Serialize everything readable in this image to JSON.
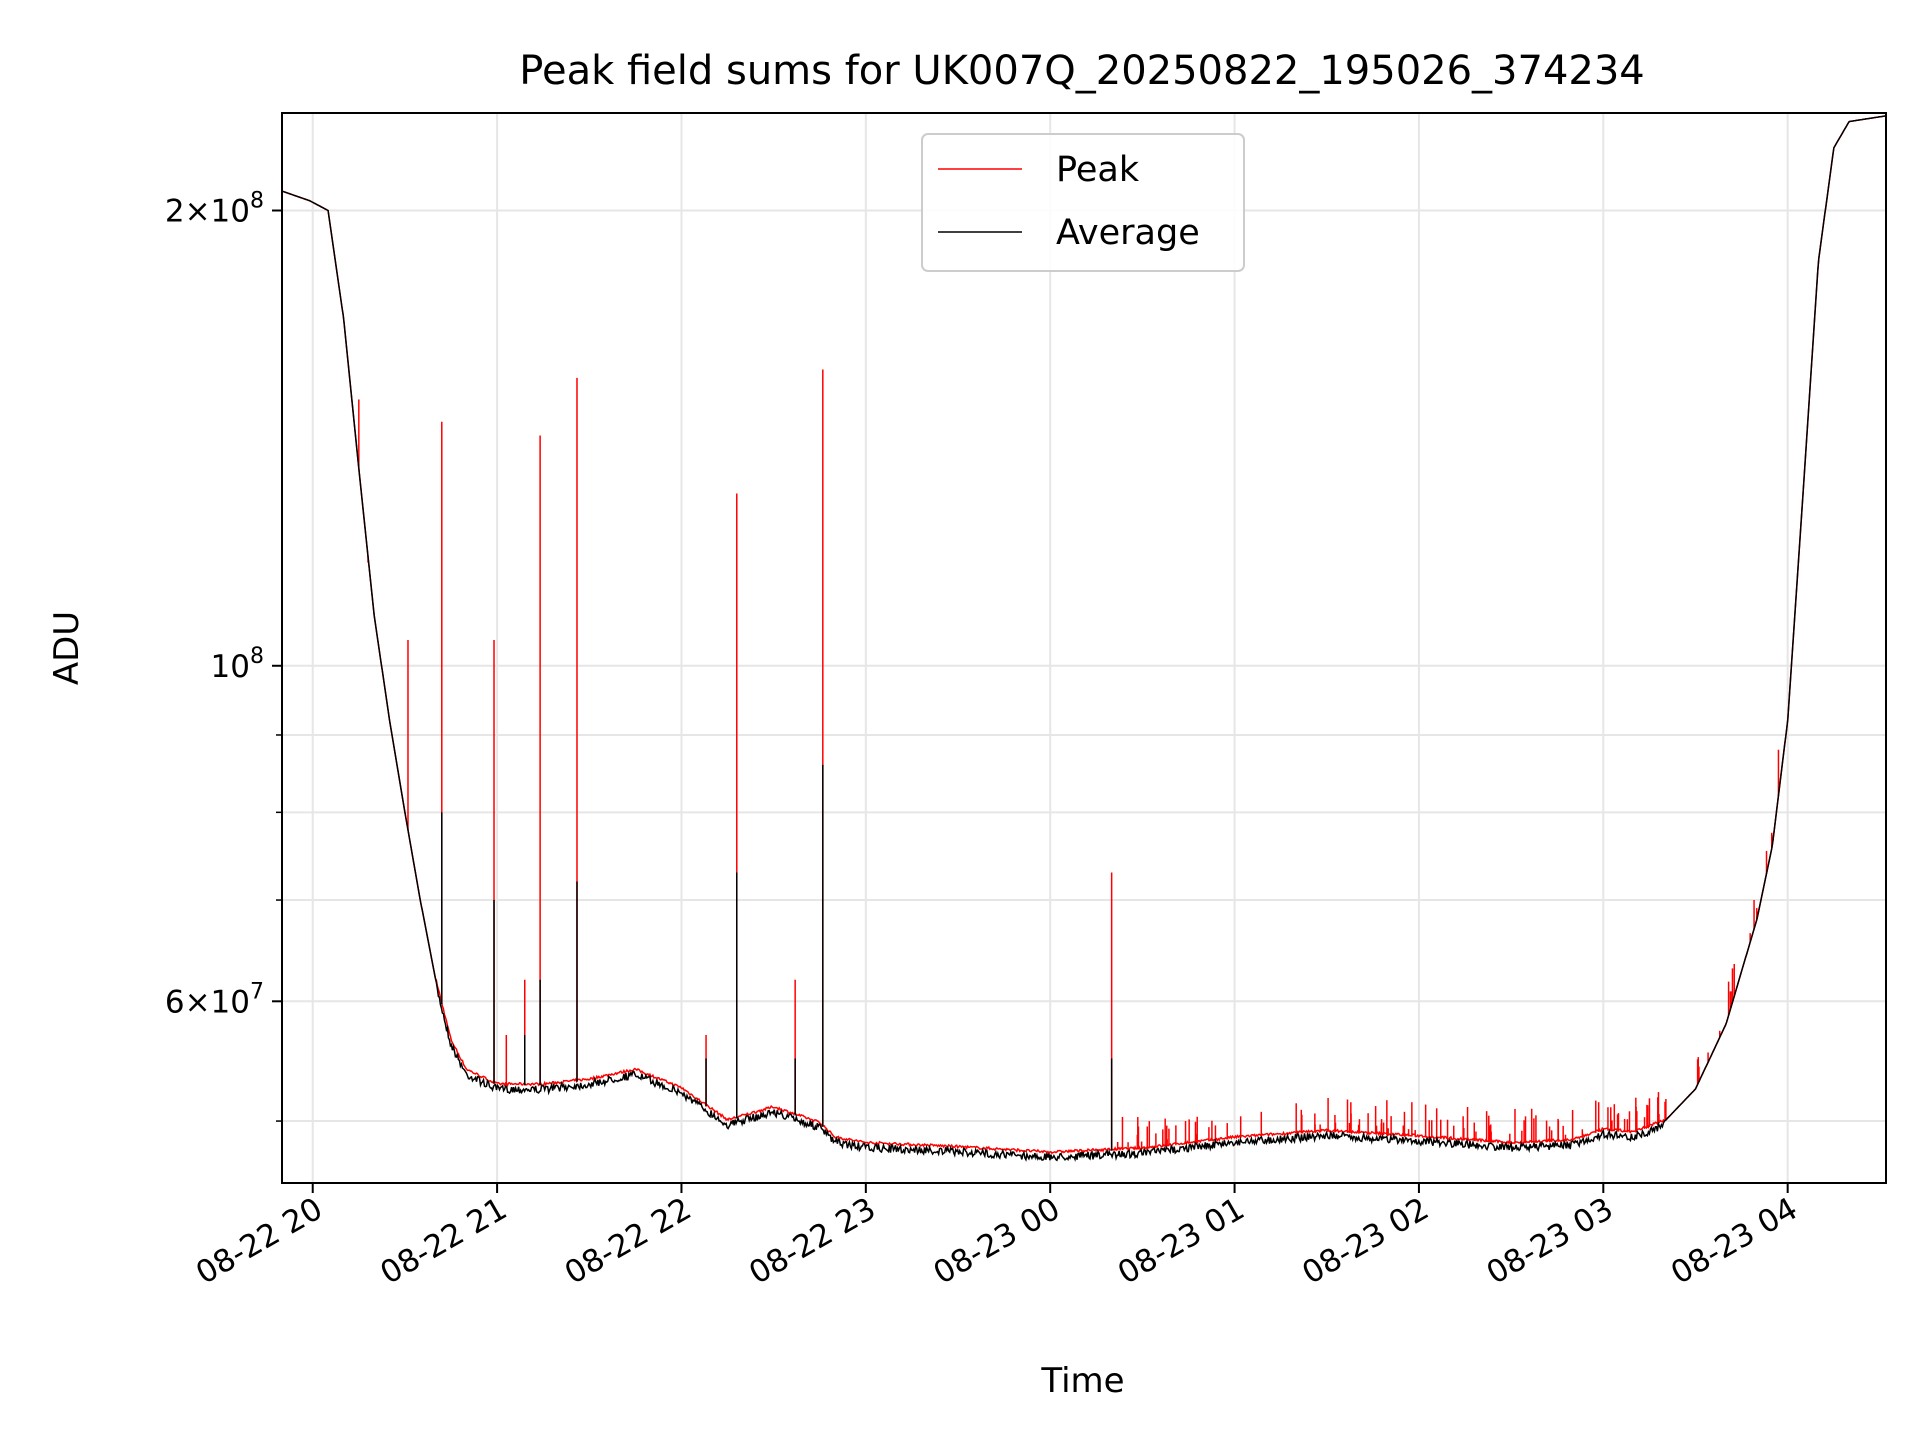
{
  "chart_data": {
    "type": "line",
    "title": "Peak field sums for UK007Q_20250822_195026_374234",
    "xlabel": "Time",
    "ylabel": "ADU",
    "y_scale": "log",
    "ylim": [
      45500000,
      232000000
    ],
    "xlim": [
      "2025-08-22 19:50",
      "2025-08-23 04:32"
    ],
    "grid": true,
    "legend_position": "top-center",
    "x_tick_labels": [
      "08-22 20",
      "08-22 21",
      "08-22 22",
      "08-22 23",
      "08-23 00",
      "08-23 01",
      "08-23 02",
      "08-23 03",
      "08-23 04"
    ],
    "x_tick_times": [
      "2025-08-22 20:00",
      "2025-08-22 21:00",
      "2025-08-22 22:00",
      "2025-08-22 23:00",
      "2025-08-23 00:00",
      "2025-08-23 01:00",
      "2025-08-23 02:00",
      "2025-08-23 03:00",
      "2025-08-23 04:00"
    ],
    "y_major_ticks": [
      {
        "value": 200000000,
        "mant": "2",
        "exp": "8"
      },
      {
        "value": 100000000,
        "mant": "",
        "exp": "8"
      },
      {
        "value": 60000000,
        "mant": "6",
        "exp": "7"
      }
    ],
    "y_minor_ticks": [
      50000000,
      70000000,
      80000000,
      90000000
    ],
    "series": [
      {
        "name": "Average",
        "color": "#000000",
        "points": [
          [
            "2025-08-22 19:50",
            206000000
          ],
          [
            "2025-08-22 19:59",
            203000000
          ],
          [
            "2025-08-22 20:05",
            200000000
          ],
          [
            "2025-08-22 20:10",
            170000000
          ],
          [
            "2025-08-22 20:15",
            135000000
          ],
          [
            "2025-08-22 20:20",
            108000000
          ],
          [
            "2025-08-22 20:25",
            92000000
          ],
          [
            "2025-08-22 20:30",
            80000000
          ],
          [
            "2025-08-22 20:35",
            70000000
          ],
          [
            "2025-08-22 20:40",
            62000000
          ],
          [
            "2025-08-22 20:45",
            56500000
          ],
          [
            "2025-08-22 20:50",
            54000000
          ],
          [
            "2025-08-22 21:00",
            52800000
          ],
          [
            "2025-08-22 21:15",
            52800000
          ],
          [
            "2025-08-22 21:30",
            53200000
          ],
          [
            "2025-08-22 21:45",
            54000000
          ],
          [
            "2025-08-22 22:00",
            52500000
          ],
          [
            "2025-08-22 22:15",
            50000000
          ],
          [
            "2025-08-22 22:30",
            51000000
          ],
          [
            "2025-08-22 22:45",
            49800000
          ],
          [
            "2025-08-22 22:50",
            48700000
          ],
          [
            "2025-08-22 23:00",
            48300000
          ],
          [
            "2025-08-22 23:30",
            48000000
          ],
          [
            "2025-08-23 00:00",
            47600000
          ],
          [
            "2025-08-23 00:30",
            47900000
          ],
          [
            "2025-08-23 01:00",
            48700000
          ],
          [
            "2025-08-23 01:30",
            49200000
          ],
          [
            "2025-08-23 02:00",
            48800000
          ],
          [
            "2025-08-23 02:30",
            48300000
          ],
          [
            "2025-08-23 02:50",
            48500000
          ],
          [
            "2025-08-23 03:00",
            49300000
          ],
          [
            "2025-08-23 03:10",
            49100000
          ],
          [
            "2025-08-23 03:20",
            50000000
          ],
          [
            "2025-08-23 03:30",
            52500000
          ],
          [
            "2025-08-23 03:40",
            58000000
          ],
          [
            "2025-08-23 03:50",
            68000000
          ],
          [
            "2025-08-23 03:55",
            76000000
          ],
          [
            "2025-08-23 04:00",
            92000000
          ],
          [
            "2025-08-23 04:05",
            130000000
          ],
          [
            "2025-08-23 04:10",
            185000000
          ],
          [
            "2025-08-23 04:15",
            220000000
          ],
          [
            "2025-08-23 04:20",
            229000000
          ],
          [
            "2025-08-23 04:32",
            231000000
          ]
        ],
        "spikes": [
          [
            "2025-08-22 20:42",
            80000000
          ],
          [
            "2025-08-22 20:59",
            70000000
          ],
          [
            "2025-08-22 21:09",
            57000000
          ],
          [
            "2025-08-22 21:14",
            62000000
          ],
          [
            "2025-08-22 21:26",
            72000000
          ],
          [
            "2025-08-22 22:08",
            55000000
          ],
          [
            "2025-08-22 22:18",
            73000000
          ],
          [
            "2025-08-22 22:37",
            55000000
          ],
          [
            "2025-08-22 22:46",
            86000000
          ],
          [
            "2025-08-23 00:20",
            55000000
          ]
        ]
      },
      {
        "name": "Peak",
        "color": "#ff0000",
        "spikes": [
          [
            "2025-08-22 20:15",
            150000000
          ],
          [
            "2025-08-22 20:18",
            117000000
          ],
          [
            "2025-08-22 20:31",
            104000000
          ],
          [
            "2025-08-22 20:42",
            145000000
          ],
          [
            "2025-08-22 20:59",
            104000000
          ],
          [
            "2025-08-22 21:03",
            57000000
          ],
          [
            "2025-08-22 21:09",
            62000000
          ],
          [
            "2025-08-22 21:14",
            142000000
          ],
          [
            "2025-08-22 21:26",
            155000000
          ],
          [
            "2025-08-22 22:08",
            57000000
          ],
          [
            "2025-08-22 22:18",
            130000000
          ],
          [
            "2025-08-22 22:37",
            62000000
          ],
          [
            "2025-08-22 22:46",
            157000000
          ],
          [
            "2025-08-23 00:20",
            73000000
          ],
          [
            "2025-08-23 03:57",
            88000000
          ]
        ]
      }
    ]
  }
}
